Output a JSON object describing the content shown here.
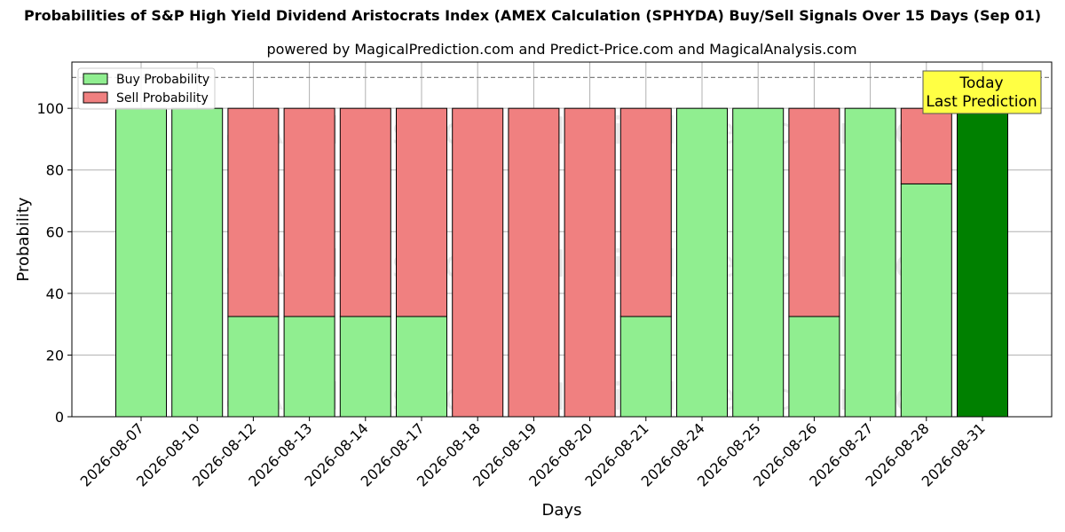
{
  "title": "Probabilities of S&P High Yield Dividend Aristocrats Index (AMEX Calculation (SPHYDA) Buy/Sell Signals Over 15 Days (Sep 01)",
  "subtitle": "powered by MagicalPrediction.com and Predict-Price.com and MagicalAnalysis.com",
  "watermarks": [
    "MagicalAnalysis.com",
    "MagicalPrediction.com"
  ],
  "today_annotation": [
    "Today",
    "Last Prediction"
  ],
  "colors": {
    "buy": "#90ee90",
    "sell": "#f08080",
    "today": "#008000",
    "annotation_bg": "#ffff44"
  },
  "chart_data": {
    "type": "bar",
    "stacked": true,
    "categories": [
      "2026-08-07",
      "2026-08-10",
      "2026-08-12",
      "2026-08-13",
      "2026-08-14",
      "2026-08-17",
      "2026-08-18",
      "2026-08-19",
      "2026-08-20",
      "2026-08-21",
      "2026-08-24",
      "2026-08-25",
      "2026-08-26",
      "2026-08-27",
      "2026-08-28",
      "2026-08-31"
    ],
    "series": [
      {
        "name": "Buy Probability",
        "values": [
          100,
          100,
          32.5,
          32.5,
          32.5,
          32.5,
          0,
          0,
          0,
          32.5,
          100,
          100,
          32.5,
          100,
          75.5,
          100
        ]
      },
      {
        "name": "Sell Probability",
        "values": [
          0,
          0,
          67.5,
          67.5,
          67.5,
          67.5,
          100,
          100,
          100,
          67.5,
          0,
          0,
          67.5,
          0,
          24.5,
          0
        ]
      }
    ],
    "xlabel": "Days",
    "ylabel": "Probability",
    "ylim": [
      0,
      115
    ],
    "yticks": [
      0,
      20,
      40,
      60,
      80,
      100
    ],
    "reference_line": 110,
    "grid": true,
    "legend_position": "top-left"
  }
}
